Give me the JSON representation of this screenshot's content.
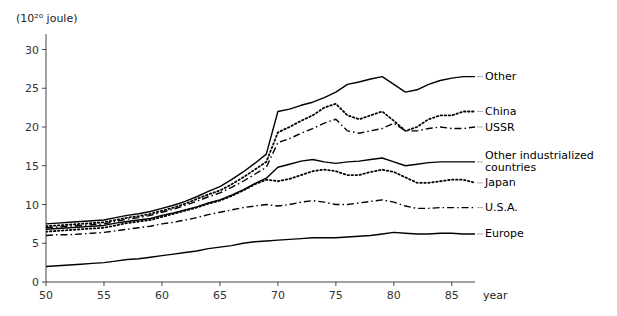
{
  "chart_data": {
    "type": "line",
    "x_label": "year",
    "y_label": "(10²⁰ joule)",
    "x": [
      50,
      51,
      52,
      53,
      54,
      55,
      56,
      57,
      58,
      59,
      60,
      61,
      62,
      63,
      64,
      65,
      66,
      67,
      68,
      69,
      70,
      71,
      72,
      73,
      74,
      75,
      76,
      77,
      78,
      79,
      80,
      81,
      82,
      83,
      84,
      85,
      86,
      87
    ],
    "series": [
      {
        "name": "Other",
        "color": "#000000",
        "line_style": "solid",
        "values": [
          7.5,
          7.6,
          7.7,
          7.8,
          7.9,
          8.0,
          8.3,
          8.6,
          8.8,
          9.1,
          9.5,
          9.9,
          10.4,
          11.0,
          11.7,
          12.3,
          13.2,
          14.2,
          15.3,
          16.5,
          22.0,
          22.3,
          22.8,
          23.2,
          23.8,
          24.5,
          25.5,
          25.8,
          26.2,
          26.5,
          25.5,
          24.5,
          24.8,
          25.5,
          26.0,
          26.3,
          26.5,
          26.5
        ]
      },
      {
        "name": "China",
        "color": "#000000",
        "line_style": "dotted",
        "values": [
          7.2,
          7.3,
          7.4,
          7.5,
          7.6,
          7.7,
          8.0,
          8.3,
          8.5,
          8.8,
          9.2,
          9.6,
          10.1,
          10.7,
          11.3,
          11.8,
          12.6,
          13.5,
          14.5,
          15.5,
          19.3,
          20.0,
          20.8,
          21.5,
          22.5,
          23.0,
          21.5,
          21.0,
          21.5,
          22.0,
          20.8,
          19.5,
          20.0,
          21.0,
          21.5,
          21.5,
          22.0,
          22.0
        ]
      },
      {
        "name": "USSR",
        "color": "#000000",
        "line_style": "dashdot",
        "values": [
          7.0,
          7.1,
          7.2,
          7.3,
          7.4,
          7.5,
          7.8,
          8.1,
          8.3,
          8.6,
          9.0,
          9.4,
          9.9,
          10.4,
          11.0,
          11.5,
          12.2,
          13.0,
          13.9,
          14.8,
          18.0,
          18.5,
          19.2,
          19.8,
          20.5,
          21.0,
          19.5,
          19.2,
          19.5,
          19.8,
          20.5,
          19.5,
          19.5,
          19.8,
          20.0,
          19.8,
          19.8,
          20.0
        ]
      },
      {
        "name": "Other industrialized\ncountries",
        "color": "#000000",
        "line_style": "solid",
        "values": [
          6.8,
          6.9,
          7.0,
          7.1,
          7.2,
          7.3,
          7.6,
          7.8,
          8.0,
          8.2,
          8.6,
          8.9,
          9.3,
          9.7,
          10.2,
          10.6,
          11.2,
          11.9,
          12.7,
          13.4,
          14.8,
          15.2,
          15.6,
          15.8,
          15.5,
          15.3,
          15.5,
          15.6,
          15.8,
          16.0,
          15.5,
          15.0,
          15.2,
          15.4,
          15.5,
          15.5,
          15.5,
          15.5
        ]
      },
      {
        "name": "Japan",
        "color": "#000000",
        "line_style": "dotted",
        "values": [
          6.5,
          6.6,
          6.7,
          6.8,
          6.9,
          7.0,
          7.3,
          7.6,
          7.8,
          8.0,
          8.4,
          8.8,
          9.2,
          9.6,
          10.1,
          10.5,
          11.1,
          11.8,
          12.6,
          13.2,
          13.0,
          13.3,
          13.8,
          14.3,
          14.5,
          14.3,
          13.8,
          13.8,
          14.2,
          14.5,
          14.2,
          13.5,
          12.8,
          12.8,
          13.0,
          13.2,
          13.2,
          12.8
        ]
      },
      {
        "name": "U.S.A.",
        "color": "#000000",
        "line_style": "dashdot",
        "values": [
          6.0,
          6.1,
          6.1,
          6.2,
          6.3,
          6.4,
          6.6,
          6.8,
          7.0,
          7.2,
          7.5,
          7.7,
          8.0,
          8.3,
          8.7,
          9.0,
          9.3,
          9.6,
          9.8,
          10.0,
          9.8,
          10.0,
          10.3,
          10.5,
          10.3,
          10.0,
          10.0,
          10.2,
          10.4,
          10.6,
          10.3,
          9.8,
          9.5,
          9.5,
          9.6,
          9.6,
          9.6,
          9.6
        ]
      },
      {
        "name": "Europe",
        "color": "#000000",
        "line_style": "solid",
        "values": [
          2.0,
          2.1,
          2.2,
          2.3,
          2.4,
          2.5,
          2.7,
          2.9,
          3.0,
          3.2,
          3.4,
          3.6,
          3.8,
          4.0,
          4.3,
          4.5,
          4.7,
          5.0,
          5.2,
          5.3,
          5.4,
          5.5,
          5.6,
          5.7,
          5.7,
          5.7,
          5.8,
          5.9,
          6.0,
          6.2,
          6.4,
          6.3,
          6.2,
          6.2,
          6.3,
          6.3,
          6.2,
          6.2
        ]
      }
    ],
    "xlim": [
      50,
      87
    ],
    "ylim": [
      0,
      32
    ],
    "xticks": [
      50,
      55,
      60,
      65,
      70,
      75,
      80,
      85
    ],
    "yticks": [
      0,
      5,
      10,
      15,
      20,
      25,
      30
    ],
    "grid": false
  }
}
